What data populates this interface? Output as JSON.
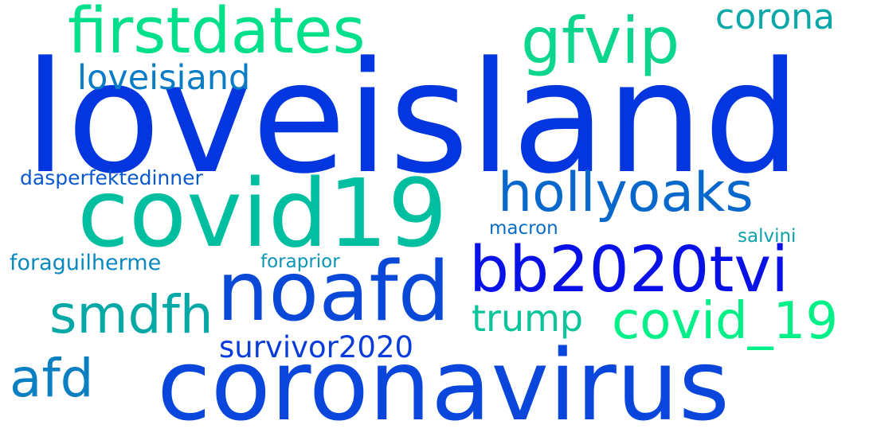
{
  "cloud": {
    "words": [
      {
        "key": "loveisland",
        "text": "loveisland",
        "color": "#0436e0"
      },
      {
        "key": "coronavirus",
        "text": "coronavirus",
        "color": "#0a46dc"
      },
      {
        "key": "covid19",
        "text": "covid19",
        "color": "#00bfa0"
      },
      {
        "key": "noafd",
        "text": "noafd",
        "color": "#0a48d8"
      },
      {
        "key": "firstdates",
        "text": "firstdates",
        "color": "#00e08a"
      },
      {
        "key": "bb2020tvi",
        "text": "bb2020tvi",
        "color": "#0912e6"
      },
      {
        "key": "hollyoaks",
        "text": "hollyoaks",
        "color": "#0868cc"
      },
      {
        "key": "gfvip",
        "text": "gfvip",
        "color": "#0cd58e"
      },
      {
        "key": "smdfh",
        "text": "smdfh",
        "color": "#06a8a6"
      },
      {
        "key": "covid_19",
        "text": "covid_19",
        "color": "#00f088"
      },
      {
        "key": "afd",
        "text": "afd",
        "color": "#0a80c2"
      },
      {
        "key": "corona",
        "text": "corona",
        "color": "#0aa8a8"
      },
      {
        "key": "trump",
        "text": "trump",
        "color": "#0cc49a"
      },
      {
        "key": "loveisiand",
        "text": "loveisiand",
        "color": "#087cc4"
      },
      {
        "key": "survivor2020",
        "text": "survivor2020",
        "color": "#0a3cdc"
      },
      {
        "key": "dasperfektedinner",
        "text": "dasperfektedinner",
        "color": "#0a58d0"
      },
      {
        "key": "foraguilherme",
        "text": "foraguilherme",
        "color": "#0a88c0"
      },
      {
        "key": "macron",
        "text": "macron",
        "color": "#0a6cc8"
      },
      {
        "key": "salvini",
        "text": "salvini",
        "color": "#0aa2aa"
      },
      {
        "key": "foraprior",
        "text": "foraprior",
        "color": "#0a96b4"
      }
    ]
  }
}
